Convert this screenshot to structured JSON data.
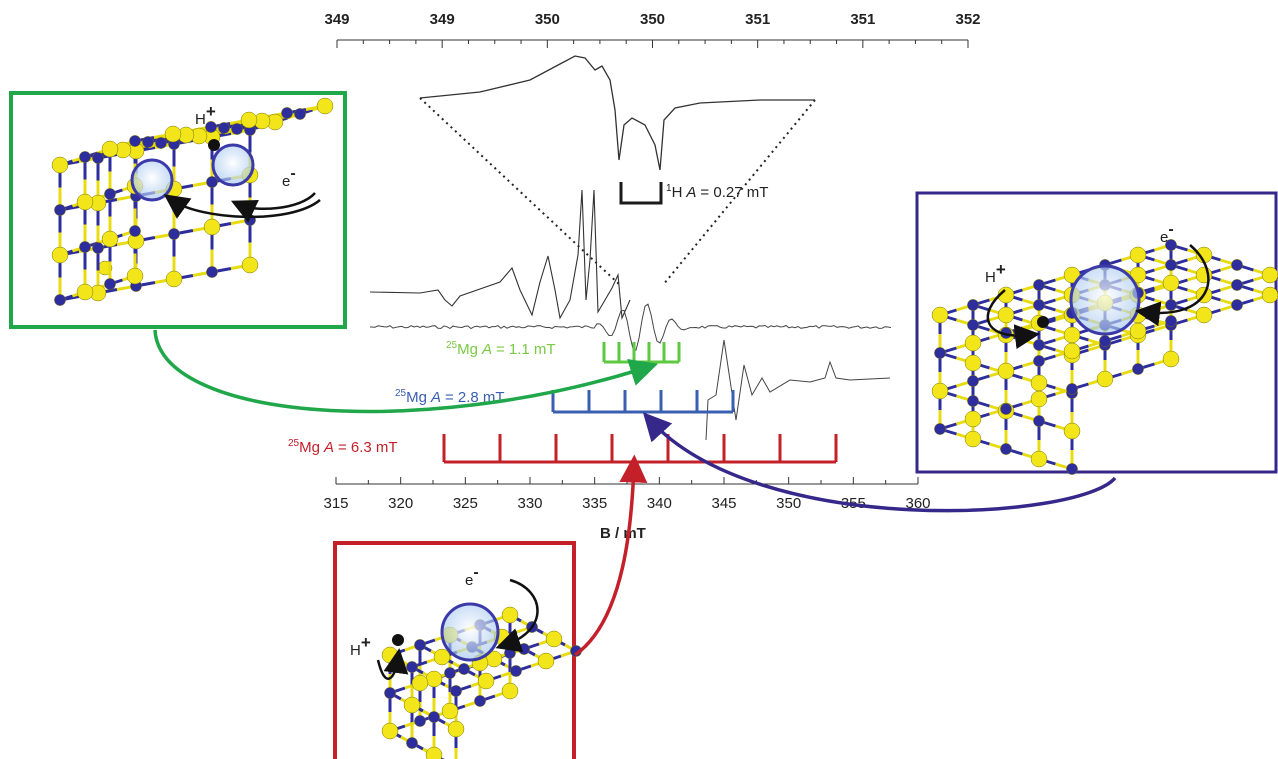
{
  "top_axis": {
    "ticks": [
      "349",
      "349",
      "350",
      "350",
      "351",
      "351",
      "352"
    ]
  },
  "bottom_axis": {
    "ticks": [
      "315",
      "320",
      "325",
      "330",
      "335",
      "340",
      "345",
      "350",
      "355",
      "360"
    ],
    "label": "B / mT"
  },
  "couplings": [
    {
      "mass": "1",
      "element": "H",
      "symbol": "A",
      "value": "= 0.27 mT"
    },
    {
      "mass": "25",
      "element": "Mg",
      "symbol": "A",
      "value": "= 1.1 mT"
    },
    {
      "mass": "25",
      "element": "Mg",
      "symbol": "A",
      "value": "= 2.8 mT"
    },
    {
      "mass": "25",
      "element": "Mg",
      "symbol": "A",
      "value": "= 6.3 mT"
    }
  ],
  "panels": [
    {
      "proton": "H",
      "proton_charge": "+",
      "electron": "e",
      "electron_charge": "-"
    },
    {
      "proton": "H",
      "proton_charge": "+",
      "electron": "e",
      "electron_charge": "-"
    },
    {
      "proton": "H",
      "proton_charge": "+",
      "electron": "e",
      "electron_charge": "-"
    }
  ]
}
